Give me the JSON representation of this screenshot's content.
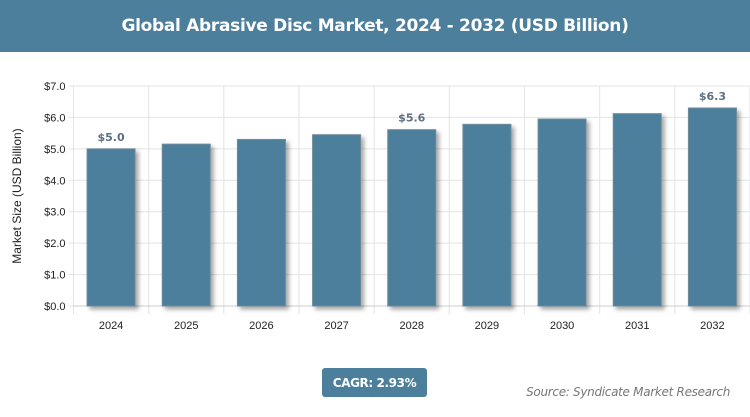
{
  "header": {
    "title": "Global Abrasive Disc Market, 2024 - 2032 (USD Billion)"
  },
  "chart_data": {
    "type": "bar",
    "title": "Global Abrasive Disc Market, 2024 - 2032 (USD Billion)",
    "xlabel": "",
    "ylabel": "Market Size (USD Billion)",
    "categories": [
      "2024",
      "2025",
      "2026",
      "2027",
      "2028",
      "2029",
      "2030",
      "2031",
      "2032"
    ],
    "values": [
      5.0,
      5.15,
      5.3,
      5.45,
      5.61,
      5.78,
      5.95,
      6.12,
      6.3
    ],
    "data_labels": {
      "0": "$5.0",
      "4": "$5.6",
      "8": "$6.3"
    },
    "ylim": [
      0,
      7
    ],
    "yticks": [
      "$0.0",
      "$1.0",
      "$2.0",
      "$3.0",
      "$4.0",
      "$5.0",
      "$6.0",
      "$7.0"
    ],
    "grid": true,
    "bar_color": "#4b7f9c"
  },
  "cagr": "CAGR: 2.93%",
  "source": "Source: Syndicate Market Research"
}
